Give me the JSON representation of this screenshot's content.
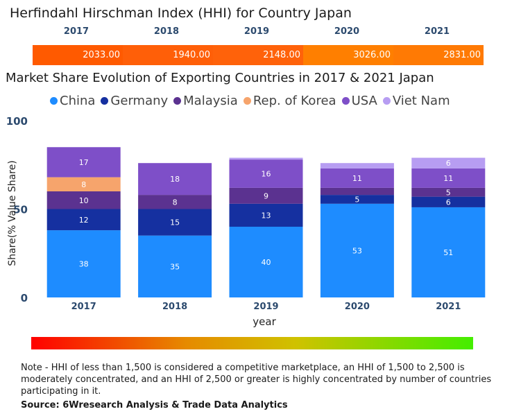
{
  "hhi": {
    "title": "Herfindahl Hirschman Index (HHI) for Country Japan",
    "years": [
      "2017",
      "2018",
      "2019",
      "2020",
      "2021"
    ],
    "values": [
      "2033.00",
      "1940.00",
      "2148.00",
      "3026.00",
      "2831.00"
    ],
    "colors": [
      "#ff5a00",
      "#ff5f08",
      "#ff620a",
      "#ff7f00",
      "#ff7a04"
    ]
  },
  "chart_data": {
    "type": "bar",
    "stacked": true,
    "title": "Market Share Evolution of Exporting Countries in 2017 & 2021 Japan",
    "xlabel": "year",
    "ylabel": "Share(% Value Share)",
    "ylim": [
      0,
      100
    ],
    "yticks": [
      "0",
      "50",
      "100"
    ],
    "categories": [
      "2017",
      "2018",
      "2019",
      "2020",
      "2021"
    ],
    "legend_position": "top",
    "series": [
      {
        "name": "China",
        "color": "#1e8cff",
        "values": [
          38,
          35,
          40,
          53,
          51
        ],
        "labels": [
          "38",
          "35",
          "40",
          "53",
          "51"
        ]
      },
      {
        "name": "Germany",
        "color": "#1530a0",
        "values": [
          12,
          15,
          13,
          5,
          6
        ],
        "labels": [
          "12",
          "15",
          "13",
          "5",
          "6"
        ]
      },
      {
        "name": "Malaysia",
        "color": "#5b3290",
        "values": [
          10,
          8,
          9,
          4,
          5
        ],
        "labels": [
          "10",
          "8",
          "9",
          "",
          "5"
        ]
      },
      {
        "name": "Rep. of Korea",
        "color": "#f6a46c",
        "values": [
          8,
          0,
          0,
          0,
          0
        ],
        "labels": [
          "8",
          "",
          "",
          "",
          ""
        ]
      },
      {
        "name": "USA",
        "color": "#7e4fc8",
        "values": [
          17,
          18,
          16,
          11,
          11
        ],
        "labels": [
          "17",
          "18",
          "16",
          "11",
          "11"
        ]
      },
      {
        "name": "Viet Nam",
        "color": "#b79df2",
        "values": [
          0,
          0,
          1,
          3,
          6
        ],
        "labels": [
          "",
          "",
          "",
          "",
          "6"
        ]
      }
    ]
  },
  "note": "Note - HHI of less than 1,500 is considered a competitive marketplace, an HHI of 1,500 to 2,500 is moderately concentrated, and an HHI of 2,500 or greater is highly concentrated by number of countries participating in it.",
  "source": "Source: 6Wresearch Analysis & Trade Data Analytics"
}
